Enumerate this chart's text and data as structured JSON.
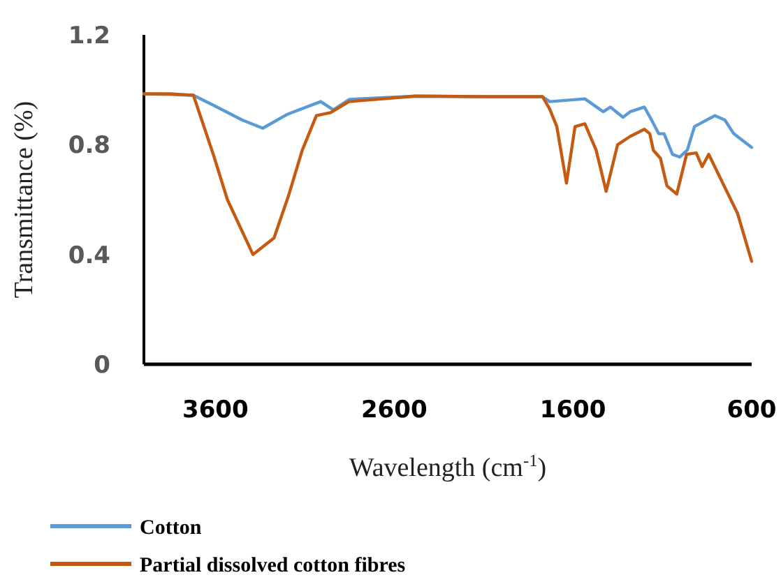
{
  "chart_data": {
    "type": "line",
    "xlabel": "Wavelength (cm$^{-1}$)",
    "ylabel": "Transmittance (%)",
    "xlim": [
      4000,
      600
    ],
    "xticks": [
      3600,
      2600,
      1600,
      600
    ],
    "ylim": [
      0,
      1.2
    ],
    "yticks": [
      0,
      0.4,
      0.8,
      1.2
    ],
    "grid": false,
    "legend": "bottom",
    "marker": "none",
    "line_style": "solid",
    "series": [
      {
        "name": "Cotton",
        "color": "#5b9bd5",
        "x": [
          4000,
          3850,
          3723,
          3600,
          3450,
          3335,
          3200,
          3011,
          2940,
          2850,
          2480,
          2100,
          1770,
          1730,
          1533,
          1430,
          1390,
          1320,
          1280,
          1200,
          1160,
          1120,
          1090,
          1043,
          1003,
          960,
          920,
          805,
          750,
          700,
          670,
          600
        ],
        "values": [
          0.985,
          0.983,
          0.98,
          0.94,
          0.89,
          0.86,
          0.91,
          0.957,
          0.927,
          0.965,
          0.977,
          0.975,
          0.975,
          0.957,
          0.967,
          0.92,
          0.937,
          0.9,
          0.92,
          0.937,
          0.89,
          0.84,
          0.84,
          0.765,
          0.755,
          0.78,
          0.866,
          0.906,
          0.89,
          0.84,
          0.825,
          0.79
        ]
      },
      {
        "name": "Partial dissolved cotton fibres",
        "color": "#c55a11",
        "x": [
          4000,
          3850,
          3723,
          3612,
          3533,
          3390,
          3272,
          3193,
          3114,
          3035,
          2956,
          2853,
          2480,
          2100,
          1770,
          1730,
          1690,
          1636,
          1588,
          1533,
          1470,
          1414,
          1350,
          1280,
          1200,
          1170,
          1150,
          1110,
          1074,
          1019,
          964,
          910,
          877,
          840,
          758,
          679,
          600
        ],
        "values": [
          0.985,
          0.985,
          0.98,
          0.765,
          0.6,
          0.4,
          0.46,
          0.61,
          0.78,
          0.906,
          0.917,
          0.957,
          0.977,
          0.975,
          0.975,
          0.93,
          0.866,
          0.66,
          0.866,
          0.876,
          0.78,
          0.63,
          0.8,
          0.83,
          0.856,
          0.84,
          0.78,
          0.75,
          0.65,
          0.62,
          0.765,
          0.77,
          0.72,
          0.765,
          0.655,
          0.55,
          0.375
        ]
      }
    ]
  }
}
